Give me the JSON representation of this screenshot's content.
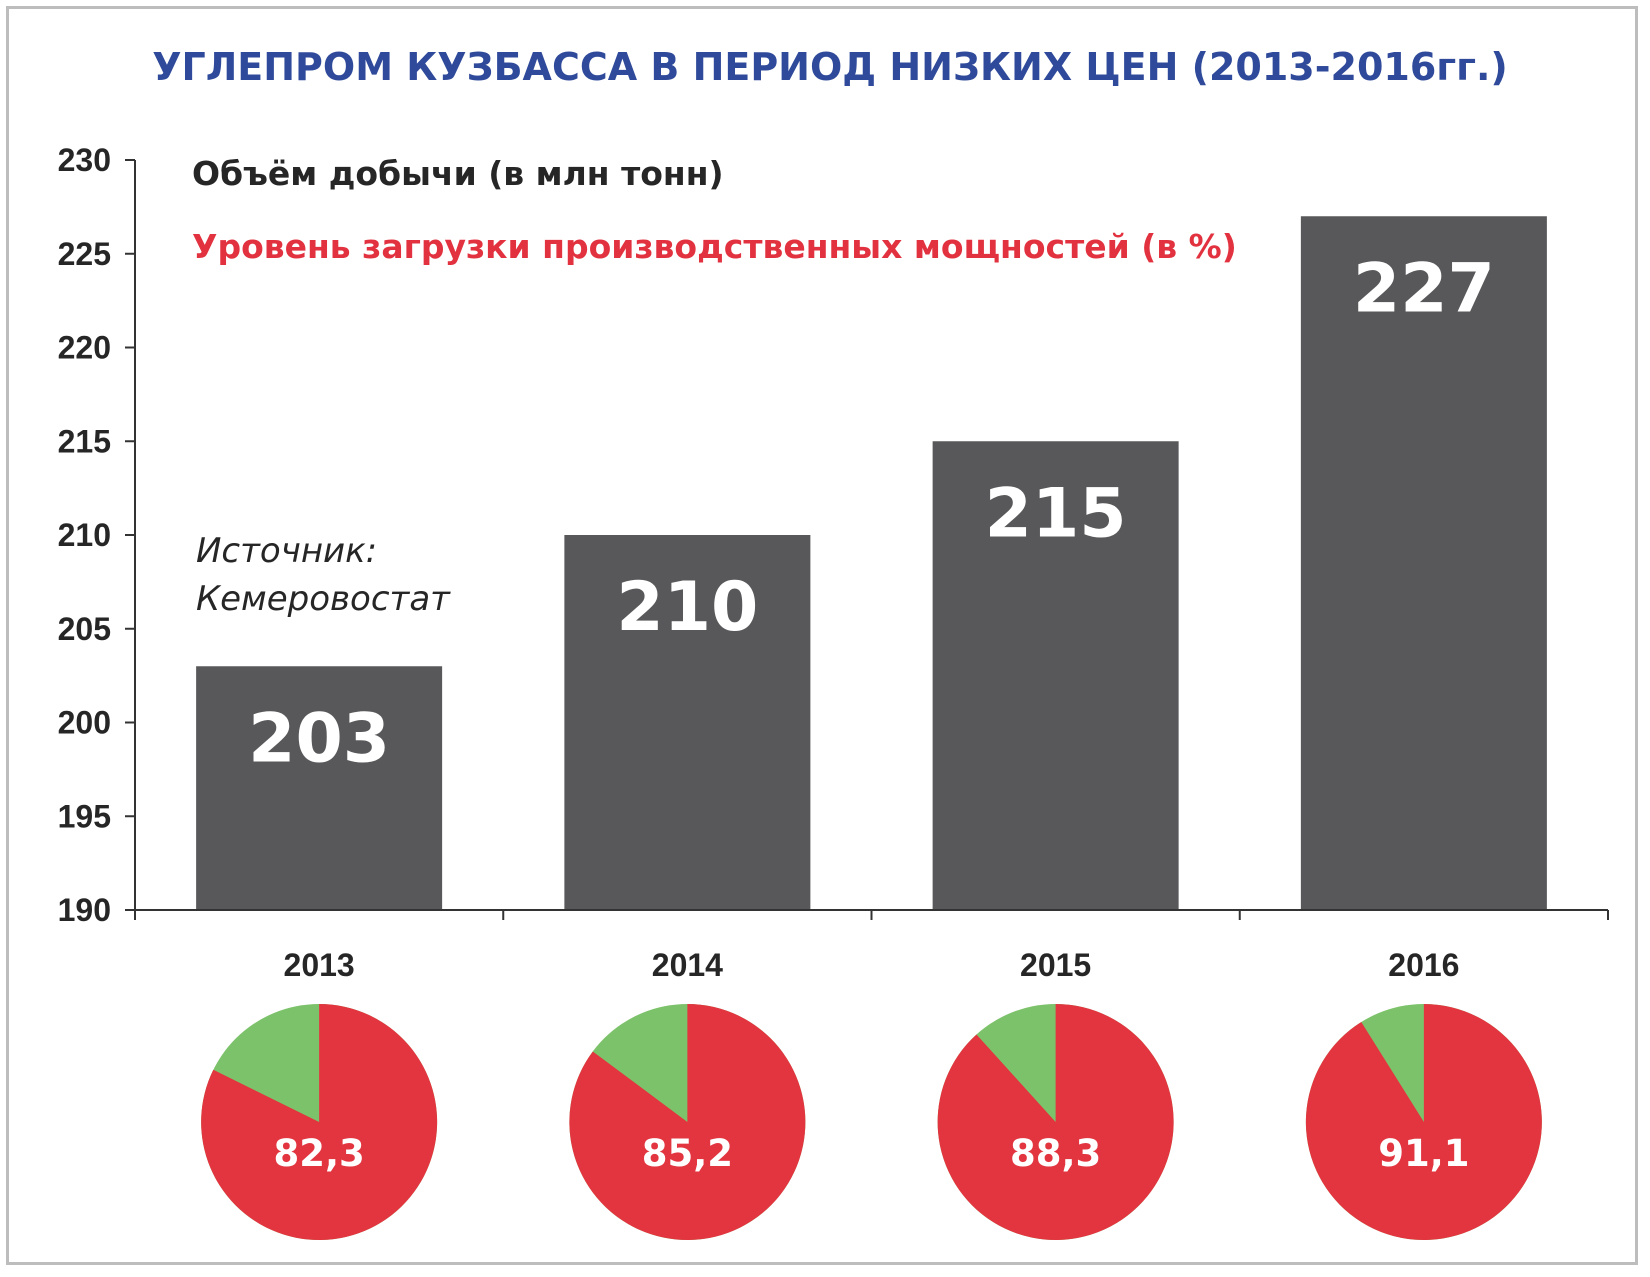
{
  "colors": {
    "title": "#2f4a9a",
    "legend_primary": "#262626",
    "legend_secondary": "#e2323f",
    "bar": "#58585a",
    "bar_label": "#ffffff",
    "pie_main": "#e2353f",
    "pie_rest": "#7cc26a",
    "axis": "#333333"
  },
  "chart_data": [
    {
      "type": "bar",
      "title": "УГЛЕПРОМ КУЗБАССА В ПЕРИОД НИЗКИХ ЦЕН (2013-2016гг.)",
      "series_label": "Объём добычи (в млн тонн)",
      "categories": [
        "2013",
        "2014",
        "2015",
        "2016"
      ],
      "values": [
        203,
        210,
        215,
        227
      ],
      "value_labels": [
        "203",
        "210",
        "215",
        "227"
      ],
      "ylim": [
        190,
        230
      ],
      "yticks": [
        "190",
        "195",
        "200",
        "205",
        "210",
        "215",
        "220",
        "225",
        "230"
      ],
      "grid": false,
      "legend": "top-left",
      "annotation": [
        "Источник:",
        "Кемеровостат"
      ]
    },
    {
      "type": "pie",
      "series_label": "Уровень загрузки производственных мощностей (в %)",
      "categories": [
        "2013",
        "2014",
        "2015",
        "2016"
      ],
      "values": [
        82.3,
        85.2,
        88.3,
        91.1
      ],
      "value_labels": [
        "82,3",
        "85,2",
        "88,3",
        "91,1"
      ]
    }
  ]
}
